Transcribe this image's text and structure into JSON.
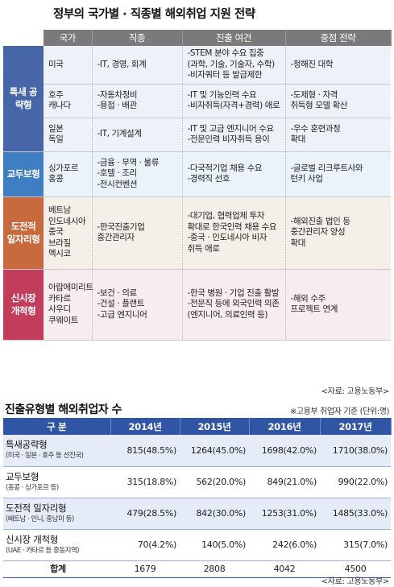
{
  "title": "정부의 국가별 · 직종별 해외취업 지원 전략",
  "strategy_table": {
    "headers": [
      "국가",
      "직종",
      "진출 여건",
      "중점 전략"
    ],
    "groups": [
      {
        "category": "특새 공략형",
        "rows": [
          {
            "country": [
              "미국"
            ],
            "jobs": [
              "-IT, 경영, 회계"
            ],
            "conditions": [
              "-STEM 분야 수요 집중",
              "(과학, 기술, 기술자, 수학)",
              "-비자쿼터 등 발급제한"
            ],
            "strategy": [
              "-청해진 대학"
            ]
          },
          {
            "country": [
              "호주",
              "캐나다"
            ],
            "jobs": [
              "-자동차정비",
              "-용접 · 배관"
            ],
            "conditions": [
              "-IT 및 기능인력 수요",
              "-비자취득(자격+경력) 애로"
            ],
            "strategy": [
              "-도제형 · 자격",
              "취득형 모델 확산"
            ]
          },
          {
            "country": [
              "일본",
              "독일"
            ],
            "jobs": [
              "-IT, 기계설계"
            ],
            "conditions": [
              "-IT 및 고급 엔지니어 수요",
              "-전문인력 비자취득 용이"
            ],
            "strategy": [
              "-우수 훈련과정",
              "확대"
            ]
          }
        ]
      },
      {
        "category": "교두보형",
        "rows": [
          {
            "country": [
              "싱가포르",
              "홍콩"
            ],
            "jobs": [
              "-금융 · 무역 · 물류",
              "-호텔 · 조리",
              "-전시컨벤션"
            ],
            "conditions": [
              "-다국적기업 채용 수요",
              "-경력직 선호"
            ],
            "strategy": [
              "-글로벌 리크루트사와",
              "턴키 사업"
            ]
          }
        ]
      },
      {
        "category": "도전적 일자리형",
        "rows": [
          {
            "country": [
              "베트남",
              "인도네시아",
              "중국",
              "브라질",
              "멕시코"
            ],
            "jobs": [
              "-한국진출기업",
              "중간관리자"
            ],
            "conditions": [
              "-대기업, 협력업체 투자",
              "확대로 한국인력 채용 수요",
              "-중국 · 인도네시아 비자",
              "취득 애로"
            ],
            "strategy": [
              "-해외진출 법인 등",
              "중간관리자 양성",
              "확대"
            ]
          }
        ]
      },
      {
        "category": "신시장 개척형",
        "rows": [
          {
            "country": [
              "아랍에미리트",
              "카타르",
              "사우디",
              "쿠웨이트"
            ],
            "jobs": [
              "-보건 · 의료",
              "-건설 · 플랜트",
              "-고급 엔지니어"
            ],
            "conditions": [
              "-한국 병원 · 기업 진출 활발",
              "-전문직 등에 외국인력 의존",
              "(엔지니어, 의료인력 등)"
            ],
            "strategy": [
              "-해외 수주",
              "프로젝트 연계"
            ]
          }
        ]
      }
    ],
    "source": "<자료: 고용노동부>"
  },
  "stats": {
    "title": "진출유형별 해외취업자 수",
    "note": "※고용부 취업자 기준 (단위:명)",
    "headers": [
      "구  분",
      "2014년",
      "2015년",
      "2016년",
      "2017년"
    ],
    "rows": [
      {
        "label": "특새공략형",
        "sub": "(미국 · 일본 · 호주 등 선진국)",
        "values": [
          "815(48.5%)",
          "1264(45.0%)",
          "1698(42.0%)",
          "1710(38.0%)"
        ]
      },
      {
        "label": "교두보형",
        "sub": "(홍콩 · 싱가포르 등)",
        "values": [
          "315(18.8%)",
          "562(20.0%)",
          "849(21.0%)",
          "990(22.0%)"
        ]
      },
      {
        "label": "도전적 일자리형",
        "sub": "(베트남 · 인니, 중남미 등)",
        "values": [
          "479(28.5%)",
          "842(30.0%)",
          "1253(31.0%)",
          "1485(33.0%)"
        ]
      },
      {
        "label": "신시장 개척형",
        "sub": "(UAE · 카타르 등 중동지역)",
        "values": [
          "70(4.2%)",
          "140(5.0%)",
          "242(6.0%)",
          "315(7.0%)"
        ]
      }
    ],
    "total": {
      "label": "합계",
      "values": [
        "1679",
        "2808",
        "4042",
        "4500"
      ]
    },
    "source": "<자료: 고용노동부>"
  }
}
